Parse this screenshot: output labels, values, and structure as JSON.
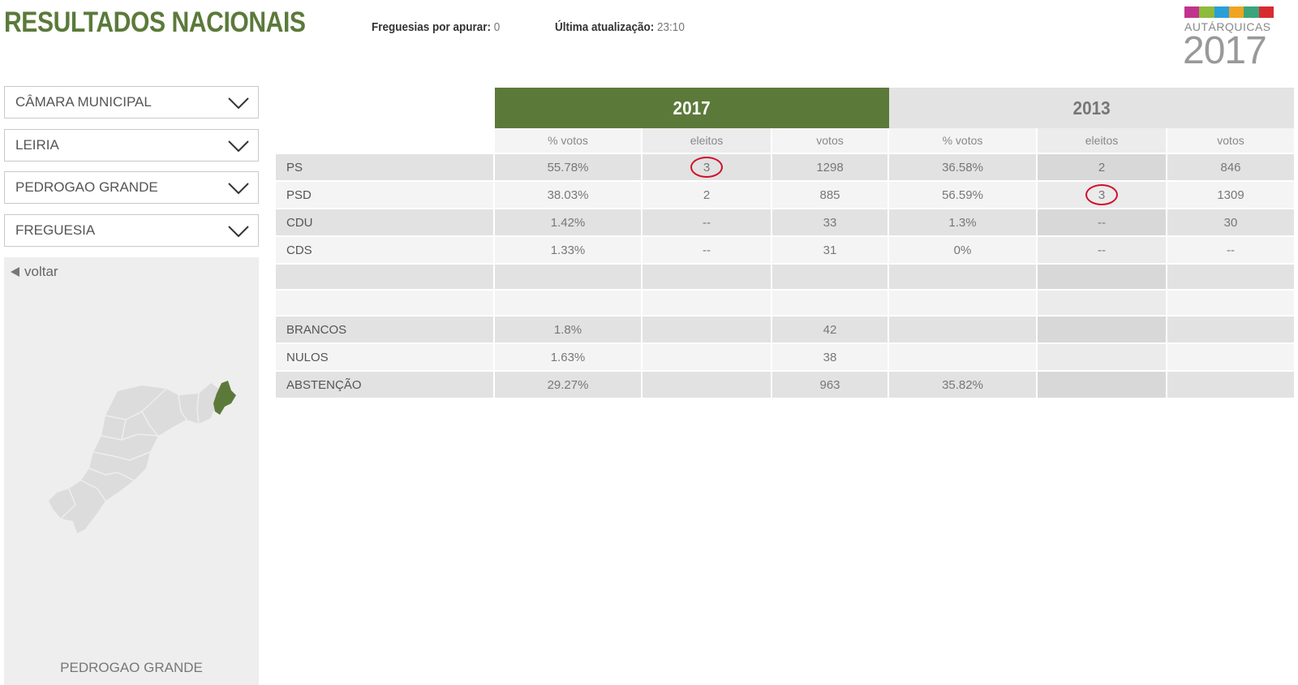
{
  "header": {
    "title": "RESULTADOS NACIONAIS",
    "freguesias_label": "Freguesias por apurar:",
    "freguesias_value": "0",
    "updated_label": "Última atualização:",
    "updated_value": "23:10"
  },
  "logo": {
    "word": "AUTÁRQUICAS",
    "year": "2017",
    "colors": [
      "#c1338e",
      "#8dbb3a",
      "#2a9fd8",
      "#f0a422",
      "#3aa57b",
      "#d82b30"
    ]
  },
  "filters": [
    {
      "value": "CÂMARA MUNICIPAL",
      "icon": "chevron-down-icon"
    },
    {
      "value": "LEIRIA",
      "icon": "chevron-down-icon"
    },
    {
      "value": "PEDROGAO GRANDE",
      "icon": "chevron-down-icon"
    },
    {
      "value": "FREGUESIA",
      "icon": "chevron-down-icon"
    }
  ],
  "map": {
    "back_label": "voltar",
    "caption": "PEDROGAO GRANDE",
    "highlight_color": "#5b7a3a"
  },
  "results": {
    "years": [
      "2017",
      "2013"
    ],
    "columns": [
      "% votos",
      "eleitos",
      "votos",
      "% votos",
      "eleitos",
      "votos"
    ],
    "rows": [
      [
        "PS",
        "55.78%",
        "3",
        "1298",
        "36.58%",
        "2",
        "846"
      ],
      [
        "PSD",
        "38.03%",
        "2",
        "885",
        "56.59%",
        "3",
        "1309"
      ],
      [
        "CDU",
        "1.42%",
        "--",
        "33",
        "1.3%",
        "--",
        "30"
      ],
      [
        "CDS",
        "1.33%",
        "--",
        "31",
        "0%",
        "--",
        "--"
      ],
      [
        "",
        "",
        "",
        "",
        "",
        "",
        ""
      ],
      [
        "",
        "",
        "",
        "",
        "",
        "",
        ""
      ],
      [
        "BRANCOS",
        "1.8%",
        "",
        "42",
        "",
        "",
        ""
      ],
      [
        "NULOS",
        "1.63%",
        "",
        "38",
        "",
        "",
        ""
      ],
      [
        "ABSTENÇÃO",
        "29.27%",
        "",
        "963",
        "35.82%",
        "",
        ""
      ]
    ]
  }
}
